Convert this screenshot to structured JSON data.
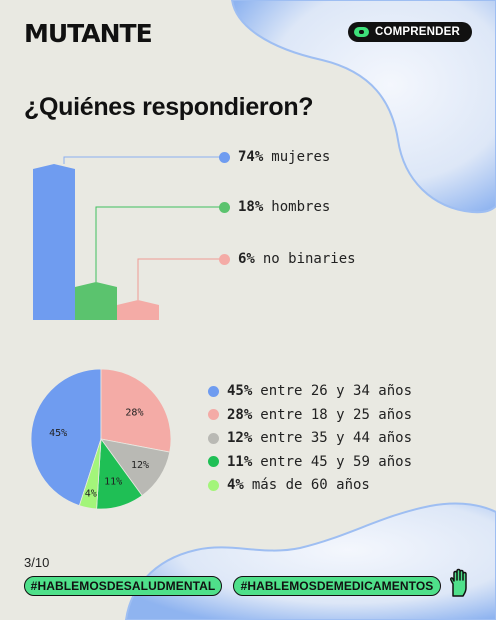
{
  "brand": "MUTANTE",
  "badge": {
    "label": "COMPRENDER",
    "icon": "pill-icon",
    "color": "#3ee07a"
  },
  "title": "¿Quiénes respondieron?",
  "gender": {
    "items": [
      {
        "pct": "74%",
        "label": "mujeres",
        "value": 74,
        "color": "#6f9cf0"
      },
      {
        "pct": "18%",
        "label": "hombres",
        "value": 18,
        "color": "#5bc36e"
      },
      {
        "pct": "6%",
        "label": "no binaries",
        "value": 6,
        "color": "#f4aba6"
      }
    ]
  },
  "chart_data": {
    "type": "pie",
    "slices": [
      {
        "pct": "45%",
        "label": "entre 26 y 34 años",
        "value": 45,
        "color": "#6f9cf0"
      },
      {
        "pct": "28%",
        "label": "entre 18 y 25 años",
        "value": 28,
        "color": "#f4aba6"
      },
      {
        "pct": "12%",
        "label": "entre 35 y 44 años",
        "value": 12,
        "color": "#b9b9b4"
      },
      {
        "pct": "11%",
        "label": "entre 45 y 59 años",
        "value": 11,
        "color": "#1fbf55"
      },
      {
        "pct": "4%",
        "label": "más de 60 años",
        "value": 4,
        "color": "#a3f57a"
      }
    ],
    "legend_position": "right"
  },
  "page": "3/10",
  "tags": [
    "#HABLEMOSDESALUDMENTAL",
    "#HABLEMOSDEMEDICAMENTOS"
  ],
  "hand_icon": "hand-icon"
}
